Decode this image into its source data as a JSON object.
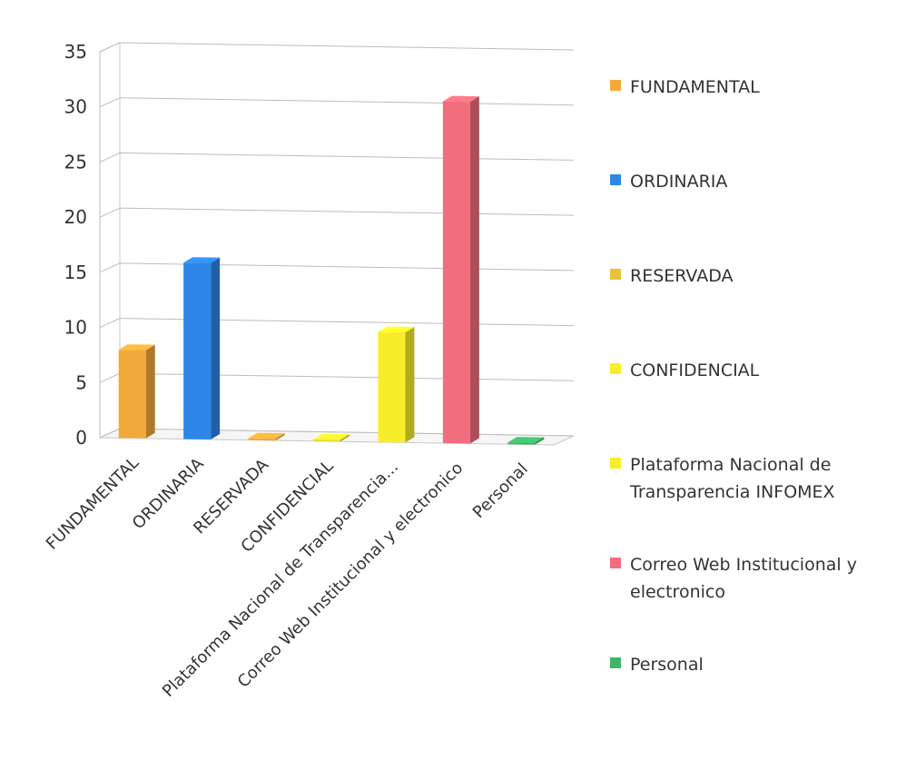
{
  "chart_data": {
    "type": "bar",
    "title": "",
    "xlabel": "",
    "ylabel": "",
    "ylim": [
      0,
      35
    ],
    "yticks": [
      0,
      5,
      10,
      15,
      20,
      25,
      30,
      35
    ],
    "grid": true,
    "legend_position": "right",
    "categories": [
      "FUNDAMENTAL",
      "ORDINARIA",
      "RESERVADA",
      "CONFIDENCIAL",
      "Plataforma Nacional de Transparencia...",
      "Correo Web Institucional y electronico",
      "Personal"
    ],
    "values": [
      8,
      16,
      0,
      0,
      10,
      31,
      0
    ],
    "colors": [
      "#F2A93B",
      "#2E86E8",
      "#F2A93B",
      "#E8E030",
      "#F7EE2A",
      "#F26D7D",
      "#3FB56A"
    ],
    "legend": [
      {
        "lines": [
          "FUNDAMENTAL"
        ],
        "color": "#F2A93B"
      },
      {
        "lines": [
          "ORDINARIA"
        ],
        "color": "#2E86E8"
      },
      {
        "lines": [
          "RESERVADA"
        ],
        "color": "#E8C23A"
      },
      {
        "lines": [
          "CONFIDENCIAL"
        ],
        "color": "#F7EE2A"
      },
      {
        "lines": [
          "Plataforma Nacional de",
          "Transparencia INFOMEX"
        ],
        "color": "#F7EE2A"
      },
      {
        "lines": [
          "Correo Web Institucional y",
          "electronico"
        ],
        "color": "#F26D7D"
      },
      {
        "lines": [
          "Personal"
        ],
        "color": "#3FB56A"
      }
    ]
  }
}
